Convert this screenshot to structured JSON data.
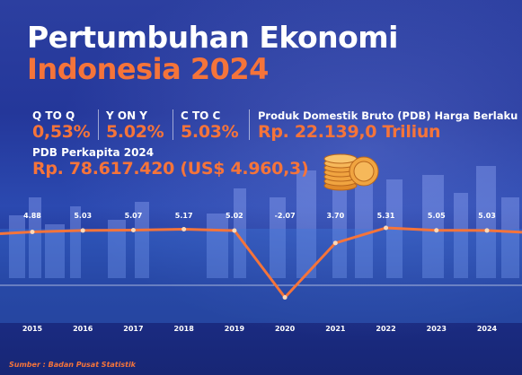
{
  "header": {
    "title_line1": "Pertumbuhan Ekonomi",
    "title_line2": "Indonesia 2024"
  },
  "stats": {
    "qtoq": {
      "label": "Q TO Q",
      "value": "0,53%"
    },
    "yony": {
      "label": "Y ON Y",
      "value": "5.02%"
    },
    "ctoc": {
      "label": "C TO C",
      "value": "5.03%"
    },
    "pdb": {
      "label": "Produk Domestik Bruto (PDB) Harga Berlaku",
      "value": "Rp. 22.139,0 Triliun"
    },
    "pdb_capita": {
      "label": "PDB Perkapita 2024",
      "value": "Rp. 78.617.420 (US$ 4.960,3)"
    }
  },
  "colors": {
    "accent": "#f5743a",
    "text": "#ffffff",
    "background": "#1b2f86",
    "line": "#f5743a",
    "coin": "#f0a440"
  },
  "chart_data": {
    "type": "line",
    "x": [
      "2015",
      "2016",
      "2017",
      "2018",
      "2019",
      "2020",
      "2021",
      "2022",
      "2023",
      "2024"
    ],
    "values": [
      4.88,
      5.03,
      5.07,
      5.17,
      5.02,
      -2.07,
      3.7,
      5.31,
      5.05,
      5.03
    ],
    "labels": [
      "4.88",
      "5.03",
      "5.07",
      "5.17",
      "5.02",
      "-2.07",
      "3.70",
      "5.31",
      "5.05",
      "5.03"
    ],
    "title": "",
    "xlabel": "",
    "ylabel": "",
    "ylim": [
      -2.5,
      5.5
    ],
    "grid": false,
    "legend": "none"
  },
  "source": "Sumber : Badan Pusat Statistik"
}
